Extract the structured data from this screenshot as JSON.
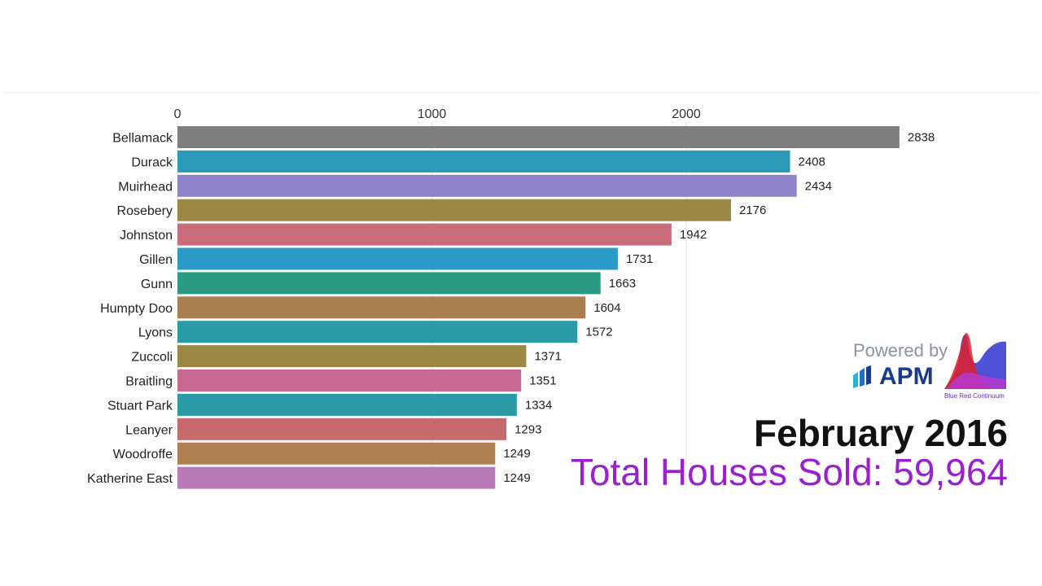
{
  "chart_data": {
    "type": "bar",
    "orientation": "horizontal",
    "categories": [
      "Bellamack",
      "Durack",
      "Muirhead",
      "Rosebery",
      "Johnston",
      "Gillen",
      "Gunn",
      "Humpty Doo",
      "Lyons",
      "Zuccoli",
      "Braitling",
      "Stuart Park",
      "Leanyer",
      "Woodroffe",
      "Katherine East"
    ],
    "values": [
      2838,
      2408,
      2434,
      2176,
      1942,
      1731,
      1663,
      1604,
      1572,
      1371,
      1351,
      1334,
      1293,
      1249,
      1249
    ],
    "colors": [
      "#7f7f7f",
      "#2a9ab8",
      "#8e83c8",
      "#9a8844",
      "#c96b7a",
      "#2b9ac6",
      "#2b9a82",
      "#a97f4f",
      "#2a9aa4",
      "#9a8844",
      "#c76a90",
      "#2a9aa4",
      "#c66a6e",
      "#b07f50",
      "#b87ab8"
    ],
    "ticks": [
      0,
      1000,
      2000
    ],
    "xlim": [
      0,
      3000
    ],
    "grid": true,
    "date": "February 2016",
    "total_label": "Total Houses Sold: 59,964"
  },
  "branding": {
    "powered_by": "Powered by",
    "apm": "APM",
    "brc": "Blue Red Continuum"
  }
}
